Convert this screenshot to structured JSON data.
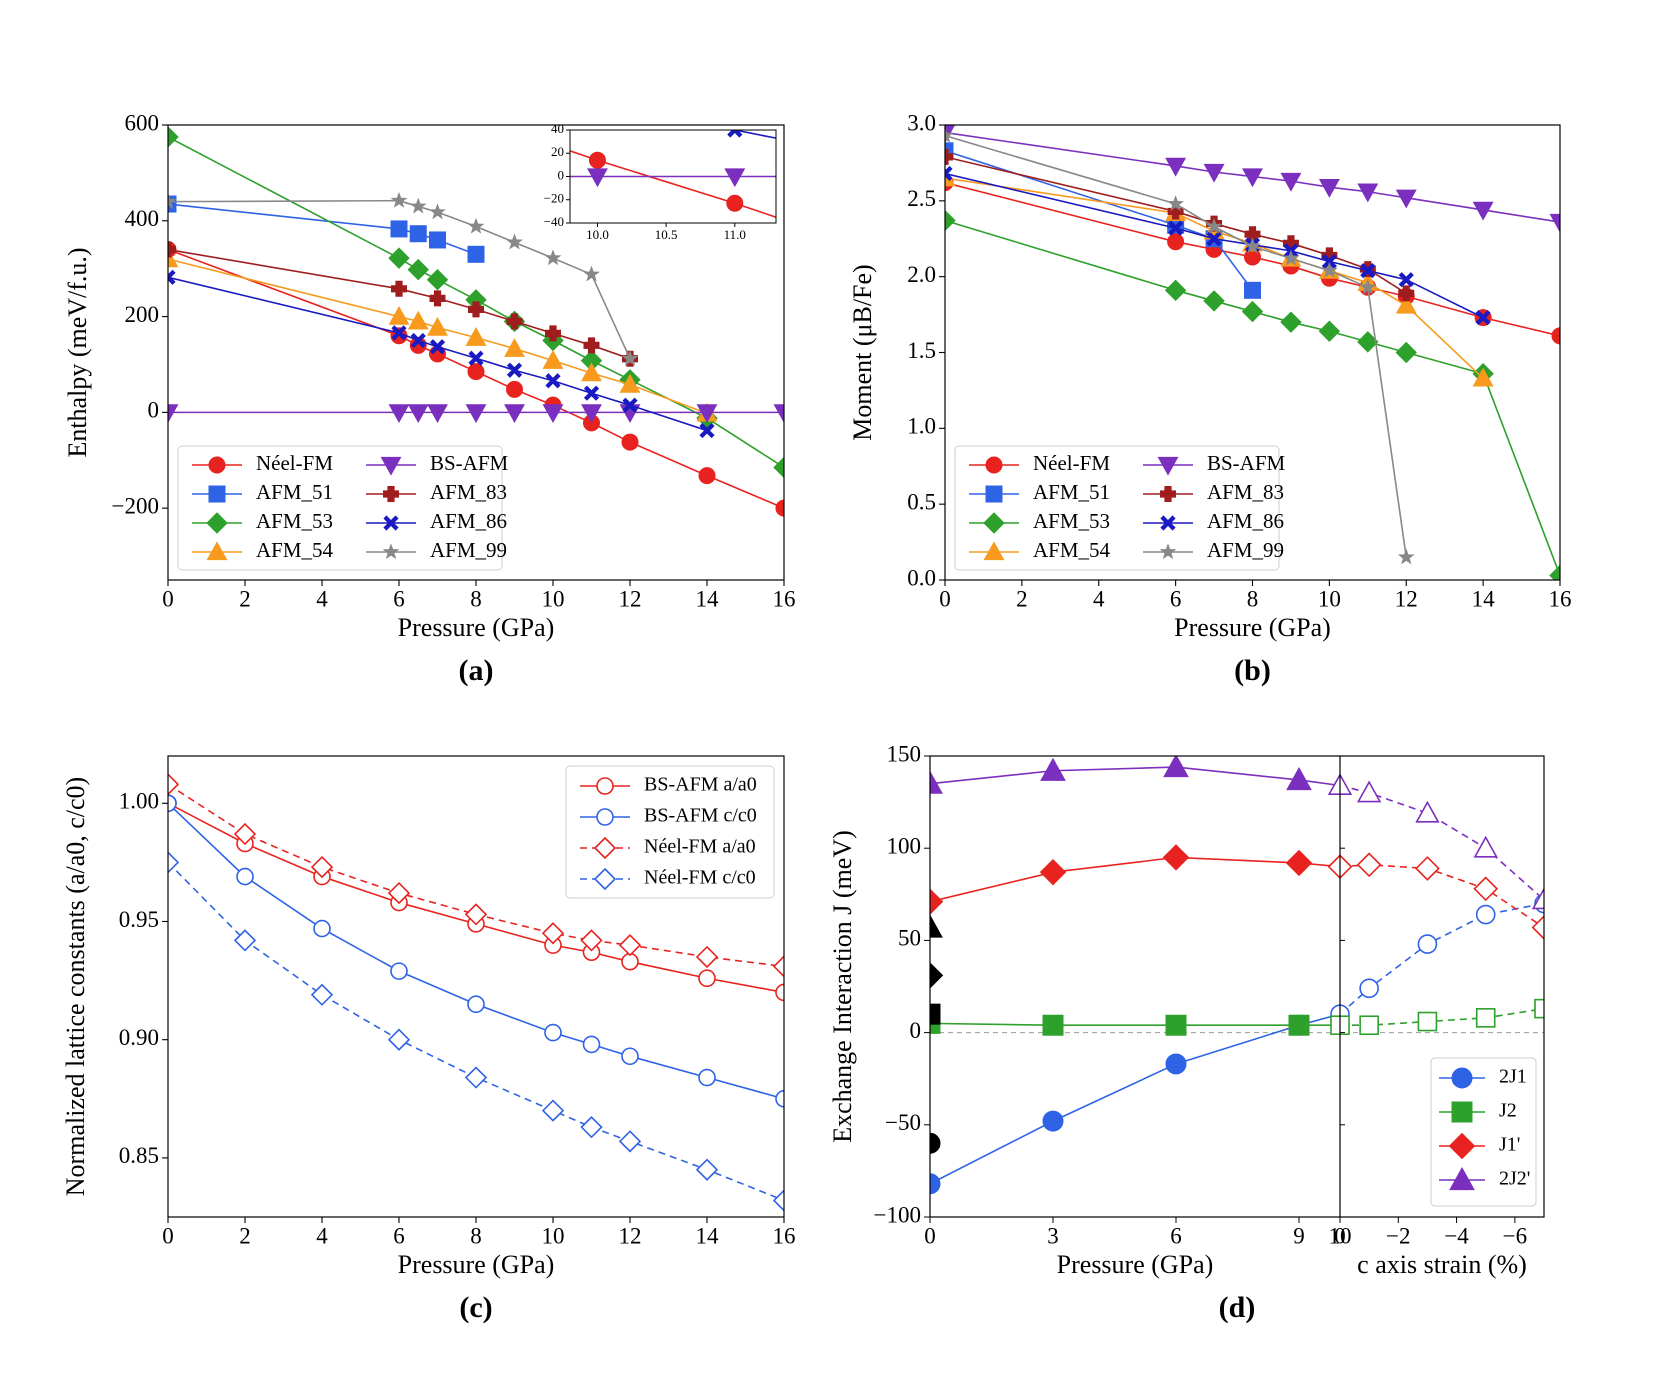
{
  "chart_data": [
    {
      "id": "a",
      "type": "line",
      "panel_label": "(a)",
      "xlabel": "Pressure (GPa)",
      "ylabel": "Enthalpy (meV/f.u.)",
      "xlim": [
        0,
        16
      ],
      "ylim": [
        -350,
        600
      ],
      "xticks": [
        "0",
        "2",
        "4",
        "6",
        "8",
        "10",
        "12",
        "14",
        "16"
      ],
      "yticks": [
        "−200",
        "0",
        "200",
        "400",
        "600"
      ],
      "legend": "lower-left",
      "series": [
        {
          "name": "Néel-FM",
          "color": "#e8231f",
          "marker": "circle",
          "x": [
            0,
            6,
            6.5,
            7,
            8,
            9,
            10,
            11,
            12,
            14,
            16
          ],
          "y": [
            340,
            160,
            140,
            122,
            85,
            48,
            15,
            -22,
            -62,
            -132,
            -200
          ]
        },
        {
          "name": "AFM_51",
          "color": "#2f63e6",
          "marker": "square",
          "x": [
            0,
            6,
            6.5,
            7,
            8
          ],
          "y": [
            435,
            383,
            373,
            360,
            330
          ]
        },
        {
          "name": "AFM_53",
          "color": "#2ea02c",
          "marker": "diamond",
          "x": [
            0,
            6,
            6.5,
            7,
            8,
            9,
            10,
            11,
            12,
            14,
            16
          ],
          "y": [
            575,
            322,
            298,
            277,
            235,
            190,
            150,
            108,
            68,
            -12,
            -115
          ]
        },
        {
          "name": "AFM_54",
          "color": "#f79a1e",
          "marker": "triangle-up",
          "x": [
            0,
            6,
            6.5,
            7,
            8,
            9,
            10,
            11,
            12,
            14
          ],
          "y": [
            320,
            200,
            190,
            177,
            156,
            133,
            108,
            82,
            58,
            -2
          ]
        },
        {
          "name": "BS-AFM",
          "color": "#7b2fbe",
          "marker": "triangle-down",
          "x": [
            0,
            6,
            6.5,
            7,
            8,
            9,
            10,
            11,
            12,
            14,
            16
          ],
          "y": [
            0,
            0,
            0,
            0,
            0,
            0,
            0,
            0,
            0,
            0,
            0
          ]
        },
        {
          "name": "AFM_83",
          "color": "#a01d1d",
          "marker": "plus",
          "x": [
            0,
            6,
            7,
            8,
            9,
            10,
            11,
            12
          ],
          "y": [
            340,
            258,
            238,
            215,
            190,
            165,
            140,
            112
          ]
        },
        {
          "name": "AFM_86",
          "color": "#1a1ac2",
          "marker": "x",
          "x": [
            0,
            6,
            6.5,
            7,
            8,
            9,
            10,
            11,
            12,
            14
          ],
          "y": [
            282,
            166,
            150,
            137,
            113,
            88,
            66,
            40,
            15,
            -38
          ]
        },
        {
          "name": "AFM_99",
          "color": "#888888",
          "marker": "star",
          "x": [
            0,
            6,
            6.5,
            7,
            8,
            9,
            10,
            11,
            12
          ],
          "y": [
            440,
            442,
            430,
            418,
            388,
            355,
            322,
            288,
            112
          ]
        }
      ],
      "inset": {
        "xlim": [
          9.8,
          11.3
        ],
        "ylim": [
          -40,
          40
        ],
        "xticks": [
          "10.0",
          "10.5",
          "11.0"
        ],
        "yticks": [
          "−40",
          "−20",
          "0",
          "20",
          "40"
        ],
        "series": [
          {
            "name": "Néel-FM",
            "color": "#e8231f",
            "marker": "circle",
            "x": [
              9.8,
              10,
              11,
              11.3
            ],
            "y": [
              22,
              14,
              -23,
              -35
            ]
          },
          {
            "name": "BS-AFM",
            "color": "#7b2fbe",
            "marker": "triangle-down",
            "x": [
              9.8,
              10,
              11,
              11.3
            ],
            "y": [
              0,
              0,
              0,
              0
            ]
          },
          {
            "name": "AFM_86",
            "color": "#1a1ac2",
            "marker": "x",
            "x": [
              11,
              11.3
            ],
            "y": [
              40,
              33
            ]
          }
        ]
      }
    },
    {
      "id": "b",
      "type": "line",
      "panel_label": "(b)",
      "xlabel": "Pressure (GPa)",
      "ylabel": "Moment (μB/Fe)",
      "xlim": [
        0,
        16
      ],
      "ylim": [
        0,
        3.0
      ],
      "xticks": [
        "0",
        "2",
        "4",
        "6",
        "8",
        "10",
        "12",
        "14",
        "16"
      ],
      "yticks": [
        "0.0",
        "0.5",
        "1.0",
        "1.5",
        "2.0",
        "2.5",
        "3.0"
      ],
      "legend": "lower-left",
      "series": [
        {
          "name": "Néel-FM",
          "color": "#e8231f",
          "marker": "circle",
          "x": [
            0,
            6,
            7,
            8,
            9,
            10,
            11,
            12,
            14,
            16
          ],
          "y": [
            2.62,
            2.23,
            2.18,
            2.13,
            2.07,
            1.99,
            1.93,
            1.87,
            1.73,
            1.61
          ]
        },
        {
          "name": "AFM_51",
          "color": "#2f63e6",
          "marker": "square",
          "x": [
            0,
            6,
            7,
            8
          ],
          "y": [
            2.83,
            2.34,
            2.25,
            1.91
          ]
        },
        {
          "name": "AFM_53",
          "color": "#2ea02c",
          "marker": "diamond",
          "x": [
            0,
            6,
            7,
            8,
            9,
            10,
            11,
            12,
            14,
            16
          ],
          "y": [
            2.37,
            1.91,
            1.84,
            1.77,
            1.7,
            1.64,
            1.57,
            1.5,
            1.36,
            0.03
          ]
        },
        {
          "name": "AFM_54",
          "color": "#f79a1e",
          "marker": "triangle-up",
          "x": [
            0,
            6,
            7,
            8,
            9,
            10,
            11,
            12,
            14
          ],
          "y": [
            2.65,
            2.42,
            2.3,
            2.22,
            2.12,
            2.04,
            1.96,
            1.81,
            1.33
          ]
        },
        {
          "name": "BS-AFM",
          "color": "#7b2fbe",
          "marker": "triangle-down",
          "x": [
            0,
            6,
            7,
            8,
            9,
            10,
            11,
            12,
            14,
            16
          ],
          "y": [
            2.95,
            2.73,
            2.69,
            2.66,
            2.63,
            2.59,
            2.56,
            2.52,
            2.44,
            2.36
          ]
        },
        {
          "name": "AFM_83",
          "color": "#a01d1d",
          "marker": "plus",
          "x": [
            0,
            6,
            7,
            8,
            9,
            10,
            11,
            12
          ],
          "y": [
            2.79,
            2.43,
            2.35,
            2.28,
            2.22,
            2.14,
            2.05,
            1.89
          ]
        },
        {
          "name": "AFM_86",
          "color": "#1a1ac2",
          "marker": "x",
          "x": [
            0,
            6,
            7,
            8,
            9,
            10,
            11,
            12,
            14
          ],
          "y": [
            2.68,
            2.32,
            2.25,
            2.21,
            2.17,
            2.1,
            2.04,
            1.98,
            1.73
          ]
        },
        {
          "name": "AFM_99",
          "color": "#888888",
          "marker": "star",
          "x": [
            0,
            6,
            7,
            8,
            9,
            10,
            11,
            12
          ],
          "y": [
            2.93,
            2.48,
            2.33,
            2.2,
            2.12,
            2.04,
            1.93,
            0.15
          ]
        }
      ]
    },
    {
      "id": "c",
      "type": "line",
      "panel_label": "(c)",
      "xlabel": "Pressure (GPa)",
      "ylabel": "Normalized lattice constants (a/a0, c/c0)",
      "xlim": [
        0,
        16
      ],
      "ylim": [
        0.825,
        1.02
      ],
      "xticks": [
        "0",
        "2",
        "4",
        "6",
        "8",
        "10",
        "12",
        "14",
        "16"
      ],
      "yticks": [
        "0.85",
        "0.90",
        "0.95",
        "1.00"
      ],
      "legend": "upper-right",
      "series": [
        {
          "name": "BS-AFM a/a0",
          "color": "#e8231f",
          "marker": "circle",
          "dash": false,
          "x": [
            0,
            2,
            4,
            6,
            8,
            10,
            11,
            12,
            14,
            16
          ],
          "y": [
            1.0,
            0.983,
            0.969,
            0.958,
            0.949,
            0.94,
            0.937,
            0.933,
            0.926,
            0.92
          ]
        },
        {
          "name": "BS-AFM c/c0",
          "color": "#2f63e6",
          "marker": "circle",
          "dash": false,
          "x": [
            0,
            2,
            4,
            6,
            8,
            10,
            11,
            12,
            14,
            16
          ],
          "y": [
            1.0,
            0.969,
            0.947,
            0.929,
            0.915,
            0.903,
            0.898,
            0.893,
            0.884,
            0.875
          ]
        },
        {
          "name": "Néel-FM a/a0",
          "color": "#e8231f",
          "marker": "diamond",
          "dash": true,
          "x": [
            0,
            2,
            4,
            6,
            8,
            10,
            11,
            12,
            14,
            16
          ],
          "y": [
            1.008,
            0.987,
            0.973,
            0.962,
            0.953,
            0.945,
            0.942,
            0.94,
            0.935,
            0.931
          ]
        },
        {
          "name": "Néel-FM c/c0",
          "color": "#2f63e6",
          "marker": "diamond",
          "dash": true,
          "x": [
            0,
            2,
            4,
            6,
            8,
            10,
            11,
            12,
            14,
            16
          ],
          "y": [
            0.975,
            0.942,
            0.919,
            0.9,
            0.884,
            0.87,
            0.863,
            0.857,
            0.845,
            0.832
          ]
        }
      ]
    },
    {
      "id": "d",
      "type": "line",
      "panel_label": "(d)",
      "xlabel": "Pressure (GPa)",
      "xlabel_right": "c axis strain (%)",
      "ylabel": "Exchange Interaction J (meV)",
      "xlim": [
        0,
        10
      ],
      "xlim_right": [
        0,
        -7
      ],
      "ylim": [
        -100,
        150
      ],
      "xticks": [
        "0",
        "3",
        "6",
        "9",
        "10"
      ],
      "xticks_right": [
        "0",
        "−2",
        "−4",
        "−6"
      ],
      "yticks": [
        "−100",
        "−50",
        "0",
        "50",
        "100",
        "150"
      ],
      "legend": "lower-right",
      "series": [
        {
          "name": "2J1",
          "color": "#2f63e6",
          "marker": "circle",
          "x": [
            0,
            3,
            6,
            9,
            10
          ],
          "y": [
            -82,
            -48,
            -17,
            4,
            10
          ]
        },
        {
          "name": "J2",
          "color": "#2ea02c",
          "marker": "square",
          "x": [
            0,
            3,
            6,
            9,
            10
          ],
          "y": [
            5,
            4,
            4,
            4,
            4
          ]
        },
        {
          "name": "J1'",
          "color": "#e8231f",
          "marker": "diamond",
          "x": [
            0,
            3,
            6,
            9,
            10
          ],
          "y": [
            71,
            87,
            95,
            92,
            90
          ]
        },
        {
          "name": "2J2'",
          "color": "#7b2fbe",
          "marker": "triangle-up",
          "x": [
            0,
            3,
            6,
            9,
            10
          ],
          "y": [
            135,
            142,
            144,
            137,
            134
          ]
        }
      ],
      "series_right": [
        {
          "name": "2J1",
          "color": "#2f63e6",
          "marker": "circle",
          "x": [
            0,
            -1,
            -3,
            -5,
            -7
          ],
          "y": [
            10,
            24,
            48,
            64,
            70
          ]
        },
        {
          "name": "J2",
          "color": "#2ea02c",
          "marker": "square",
          "x": [
            0,
            -1,
            -3,
            -5,
            -7
          ],
          "y": [
            4,
            4,
            6,
            8,
            13
          ]
        },
        {
          "name": "J1'",
          "color": "#e8231f",
          "marker": "diamond",
          "x": [
            0,
            -1,
            -3,
            -5,
            -7
          ],
          "y": [
            90,
            91,
            89,
            78,
            57
          ]
        },
        {
          "name": "2J2'",
          "color": "#7b2fbe",
          "marker": "triangle-up",
          "x": [
            0,
            -1,
            -3,
            -5,
            -7
          ],
          "y": [
            134,
            130,
            119,
            100,
            72
          ]
        }
      ],
      "experimental_points": [
        {
          "marker": "triangle-up",
          "color": "#000000",
          "x": 0,
          "y": 57
        },
        {
          "marker": "diamond",
          "color": "#000000",
          "x": 0,
          "y": 31
        },
        {
          "marker": "square",
          "color": "#000000",
          "x": 0,
          "y": 10
        },
        {
          "marker": "circle",
          "color": "#000000",
          "x": 0,
          "y": -60
        }
      ]
    }
  ]
}
